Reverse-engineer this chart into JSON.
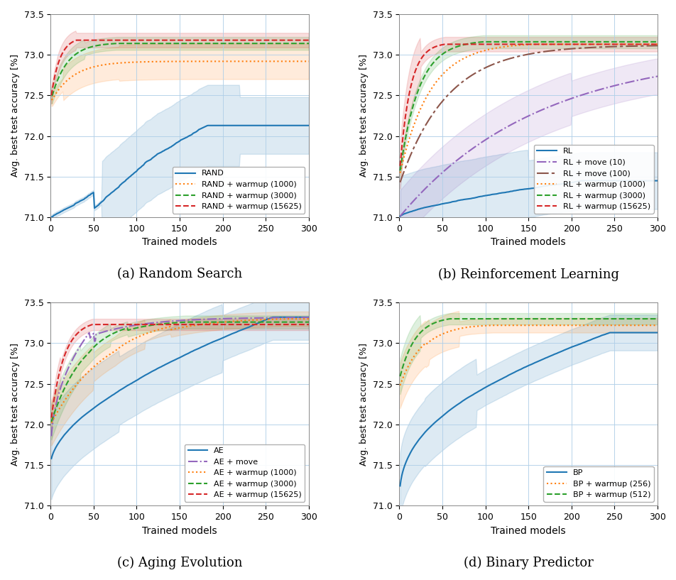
{
  "xlim": [
    0,
    300
  ],
  "ylim": [
    71.0,
    73.5
  ],
  "xlabel": "Trained models",
  "ylabel": "Avg. best test accuracy [%]",
  "yticks": [
    71.0,
    71.5,
    72.0,
    72.5,
    73.0,
    73.5
  ],
  "xticks": [
    0,
    50,
    100,
    150,
    200,
    250,
    300
  ],
  "subtitles": [
    "(a) Random Search",
    "(b) Reinforcement Learning",
    "(c) Aging Evolution",
    "(d) Binary Predictor"
  ],
  "colors": {
    "blue": "#1f77b4",
    "orange": "#ff7f0e",
    "green": "#2ca02c",
    "red": "#d62728",
    "purple": "#9467bd",
    "brown": "#8c564b"
  },
  "lw": 1.5,
  "fill_alpha": 0.15
}
